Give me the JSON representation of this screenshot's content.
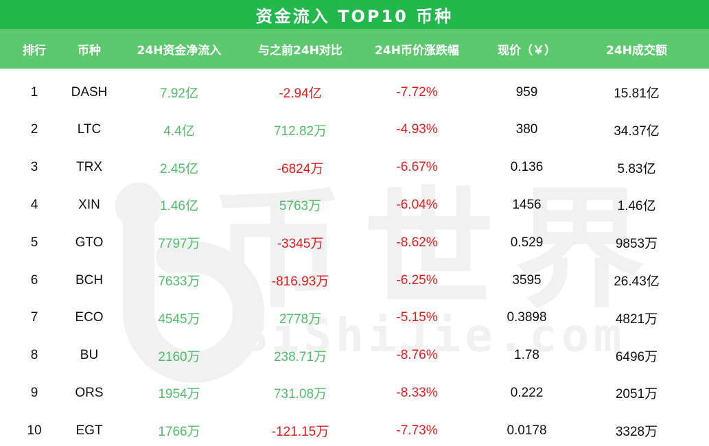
{
  "title": "资金流入 TOP10 币种",
  "headers": [
    "排行",
    "币种",
    "24H资金净流入",
    "与之前24H对比",
    "24H币价涨跌幅",
    "现价（￥）",
    "24H成交额"
  ],
  "watermark": {
    "chars": "币世界",
    "url": "BiShiJie.com"
  },
  "colors": {
    "title_bg": "#22b84c",
    "header_bg": "#5cc96e",
    "positive": "#4cbf68",
    "negative": "#e81b1b",
    "watermark": "#f1f1f1"
  },
  "rows": [
    {
      "rank": "1",
      "coin": "DASH",
      "inflow": "7.92亿",
      "compare": "-2.94亿",
      "compare_trend": "down",
      "change": "-7.72%",
      "price": "959",
      "volume": "15.81亿"
    },
    {
      "rank": "2",
      "coin": "LTC",
      "inflow": "4.4亿",
      "compare": "712.82万",
      "compare_trend": "up",
      "change": "-4.93%",
      "price": "380",
      "volume": "34.37亿"
    },
    {
      "rank": "3",
      "coin": "TRX",
      "inflow": "2.45亿",
      "compare": "-6824万",
      "compare_trend": "down",
      "change": "-6.67%",
      "price": "0.136",
      "volume": "5.83亿"
    },
    {
      "rank": "4",
      "coin": "XIN",
      "inflow": "1.46亿",
      "compare": "5763万",
      "compare_trend": "up",
      "change": "-6.04%",
      "price": "1456",
      "volume": "1.46亿"
    },
    {
      "rank": "5",
      "coin": "GTO",
      "inflow": "7797万",
      "compare": "-3345万",
      "compare_trend": "down",
      "change": "-8.62%",
      "price": "0.529",
      "volume": "9853万"
    },
    {
      "rank": "6",
      "coin": "BCH",
      "inflow": "7633万",
      "compare": "-816.93万",
      "compare_trend": "down",
      "change": "-6.25%",
      "price": "3595",
      "volume": "26.43亿"
    },
    {
      "rank": "7",
      "coin": "ECO",
      "inflow": "4545万",
      "compare": "2778万",
      "compare_trend": "up",
      "change": "-5.15%",
      "price": "0.3898",
      "volume": "4821万"
    },
    {
      "rank": "8",
      "coin": "BU",
      "inflow": "2160万",
      "compare": "238.71万",
      "compare_trend": "up",
      "change": "-8.76%",
      "price": "1.78",
      "volume": "6496万"
    },
    {
      "rank": "9",
      "coin": "ORS",
      "inflow": "1954万",
      "compare": "731.08万",
      "compare_trend": "up",
      "change": "-8.33%",
      "price": "0.222",
      "volume": "2051万"
    },
    {
      "rank": "10",
      "coin": "EGT",
      "inflow": "1766万",
      "compare": "-121.15万",
      "compare_trend": "down",
      "change": "-7.73%",
      "price": "0.0178",
      "volume": "3328万"
    }
  ]
}
